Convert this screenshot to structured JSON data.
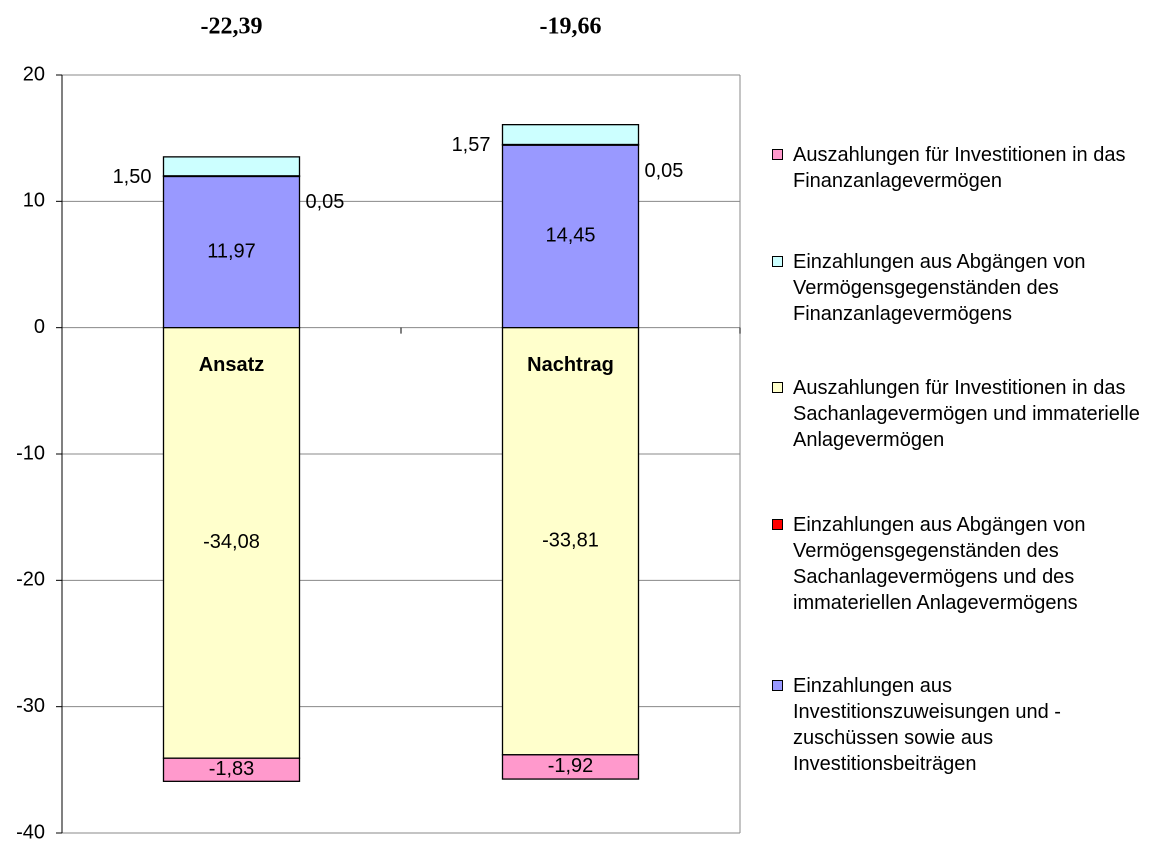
{
  "chart_data": {
    "type": "stacked_bar",
    "categories": [
      "Ansatz",
      "Nachtrag"
    ],
    "series": [
      {
        "name": "Auszahlungen für Investitionen in das Finanzanlagevermögen",
        "color": "#ff99cc",
        "values": [
          -1.83,
          -1.92
        ],
        "value_labels": [
          "-1,83",
          "-1,92"
        ]
      },
      {
        "name": "Einzahlungen aus Abgängen von Vermögensgegenständen des Finanzanlagevermögens",
        "color": "#ccffff",
        "values": [
          1.5,
          1.57
        ],
        "value_labels": [
          "1,50",
          "1,57"
        ]
      },
      {
        "name": "Auszahlungen für Investitionen in das Sachanlagevermögen und immaterielle Anlagevermögen",
        "color": "#ffffcc",
        "values": [
          -34.08,
          -33.81
        ],
        "value_labels": [
          "-34,08",
          "-33,81"
        ]
      },
      {
        "name": "Einzahlungen aus Abgängen von Vermögensgegenständen des Sachanlagevermögens und des immateriellen Anlagevermögens",
        "color": "#ff0000",
        "values": [
          0.05,
          0.05
        ],
        "value_labels": [
          "0,05",
          "0,05"
        ]
      },
      {
        "name": "Einzahlungen aus Investitionszuweisungen und -zuschüssen sowie aus Investitionsbeiträgen",
        "color": "#9999ff",
        "values": [
          11.97,
          14.45
        ],
        "value_labels": [
          "11,97",
          "14,45"
        ]
      }
    ],
    "totals": [
      -22.39,
      -19.66
    ],
    "total_labels": [
      "-22,39",
      "-19,66"
    ],
    "ylim": [
      -40,
      20
    ],
    "yticks": [
      -40,
      -30,
      -20,
      -10,
      0,
      10,
      20
    ],
    "grid": true
  }
}
